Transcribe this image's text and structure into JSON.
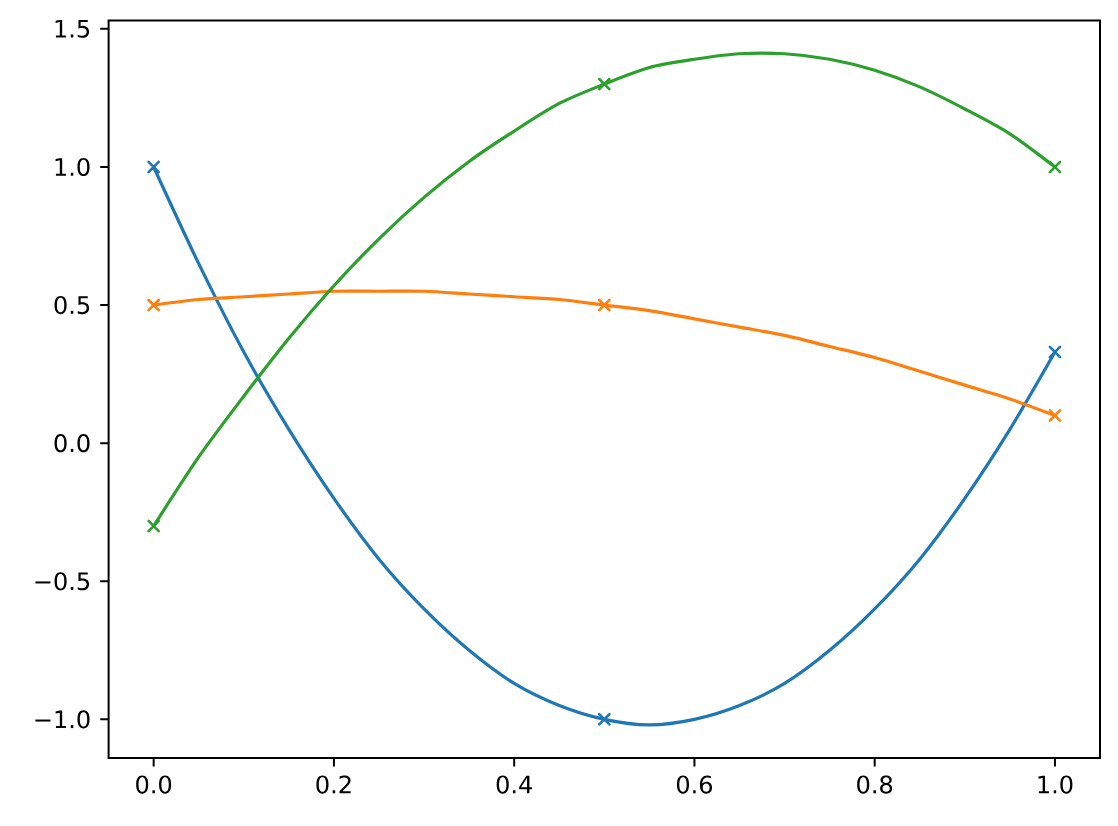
{
  "chart_data": {
    "type": "line",
    "marker": "none",
    "xlim": [
      -0.05,
      1.05
    ],
    "ylim": [
      -1.14,
      1.53
    ],
    "xticks": [
      {
        "value": 0,
        "label": "0.0"
      },
      {
        "value": 0.2,
        "label": "0.2"
      },
      {
        "value": 0.4,
        "label": "0.4"
      },
      {
        "value": 0.6,
        "label": "0.6"
      },
      {
        "value": 0.8,
        "label": "0.8"
      },
      {
        "value": 1,
        "label": "1.0"
      }
    ],
    "yticks": [
      {
        "value": -1,
        "label": "−1.0"
      },
      {
        "value": -0.5,
        "label": "−0.5"
      },
      {
        "value": 0,
        "label": "0.0"
      },
      {
        "value": 0.5,
        "label": "0.5"
      },
      {
        "value": 1,
        "label": "1.0"
      },
      {
        "value": 1.5,
        "label": "1.5"
      }
    ],
    "series": [
      {
        "color": "#1f77b4",
        "x": [
          0,
          0.05,
          0.1,
          0.15,
          0.2,
          0.25,
          0.3,
          0.35,
          0.4,
          0.45,
          0.5,
          0.55,
          0.6,
          0.65,
          0.7,
          0.75,
          0.8,
          0.85,
          0.9,
          0.95,
          1
        ],
        "values": [
          1.0,
          0.65,
          0.33,
          0.05,
          -0.2,
          -0.42,
          -0.6,
          -0.75,
          -0.87,
          -0.95,
          -1.0,
          -1.02,
          -1.0,
          -0.95,
          -0.87,
          -0.75,
          -0.6,
          -0.42,
          -0.2,
          0.05,
          0.33
        ]
      },
      {
        "color": "#ff7f0e",
        "x": [
          0,
          0.05,
          0.1,
          0.15,
          0.2,
          0.25,
          0.3,
          0.35,
          0.4,
          0.45,
          0.5,
          0.55,
          0.6,
          0.65,
          0.7,
          0.75,
          0.8,
          0.85,
          0.9,
          0.95,
          1
        ],
        "values": [
          0.5,
          0.52,
          0.53,
          0.54,
          0.55,
          0.55,
          0.55,
          0.54,
          0.53,
          0.52,
          0.5,
          0.48,
          0.45,
          0.42,
          0.39,
          0.35,
          0.31,
          0.26,
          0.21,
          0.16,
          0.1
        ]
      },
      {
        "color": "#2ca02c",
        "x": [
          0,
          0.05,
          0.1,
          0.15,
          0.2,
          0.25,
          0.3,
          0.35,
          0.4,
          0.45,
          0.5,
          0.55,
          0.6,
          0.65,
          0.7,
          0.75,
          0.8,
          0.85,
          0.9,
          0.95,
          1
        ],
        "values": [
          -0.3,
          -0.05,
          0.17,
          0.38,
          0.57,
          0.74,
          0.89,
          1.02,
          1.13,
          1.23,
          1.3,
          1.36,
          1.39,
          1.41,
          1.41,
          1.39,
          1.35,
          1.29,
          1.21,
          1.12,
          1.0
        ]
      },
      {
        "type": "scatter",
        "marker": "cross",
        "color": "#1f77b4",
        "x": [
          0,
          0.5,
          1
        ],
        "values": [
          1.0,
          -1.0,
          0.33
        ]
      },
      {
        "type": "scatter",
        "marker": "cross",
        "color": "#ff7f0e",
        "x": [
          0,
          0.5,
          1
        ],
        "values": [
          0.5,
          0.5,
          0.1
        ]
      },
      {
        "type": "scatter",
        "marker": "cross",
        "color": "#2ca02c",
        "x": [
          0,
          0.5,
          1
        ],
        "values": [
          -0.3,
          1.3,
          1.0
        ]
      }
    ]
  }
}
